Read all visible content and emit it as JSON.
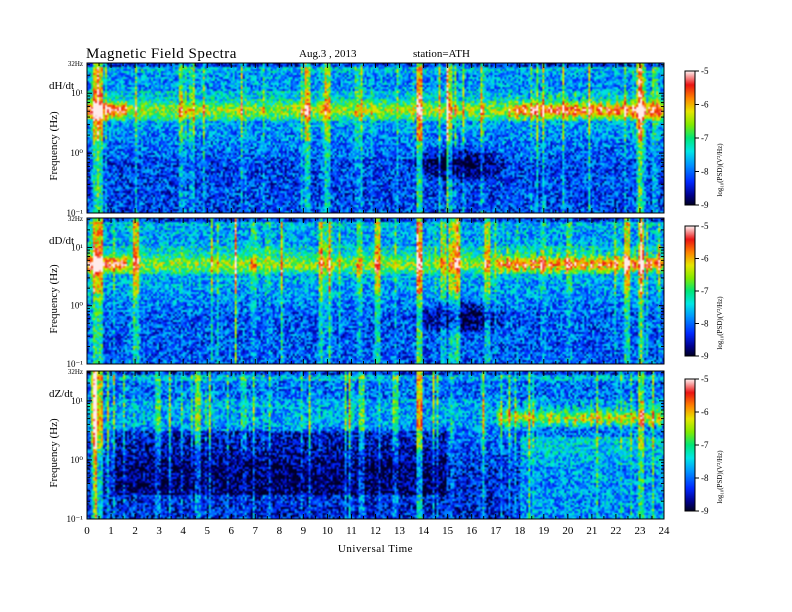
{
  "header": {
    "title": "Magnetic  Field  Spectra",
    "date": "Aug.3  , 2013",
    "station": "station=ATH"
  },
  "chart_data": [
    {
      "type": "heatmap",
      "panel_label": "dH/dt",
      "ylabel": "Frequency  (Hz)",
      "y_scale": "log",
      "ylim": [
        0.1,
        32
      ],
      "y_tick_labels": [
        "32Hz",
        "10¹",
        "10⁰",
        "10⁻¹"
      ],
      "xlim": [
        0,
        24
      ],
      "colorbar": {
        "label": "log₁₀(PSD)(V²/Hz)",
        "ticks": [
          "-5",
          "-6",
          "-7",
          "-8",
          "-9"
        ],
        "range": [
          -9,
          -5
        ]
      },
      "features": [
        {
          "name": "low_freq_floor",
          "value": -8.4
        },
        {
          "name": "band_4_8Hz",
          "value": -6.5,
          "strong_after_hour": 17.5,
          "strong_value": -5.6
        }
      ]
    },
    {
      "type": "heatmap",
      "panel_label": "dD/dt",
      "ylabel": "Frequency  (Hz)",
      "y_scale": "log",
      "ylim": [
        0.1,
        32
      ],
      "y_tick_labels": [
        "32Hz",
        "10¹",
        "10⁰",
        "10⁻¹"
      ],
      "xlim": [
        0,
        24
      ],
      "colorbar": {
        "label": "log₁₀(PSD)(V²/Hz)",
        "ticks": [
          "-5",
          "-6",
          "-7",
          "-8",
          "-9"
        ],
        "range": [
          -9,
          -5
        ]
      },
      "features": [
        {
          "name": "low_freq_floor",
          "value": -8.3
        },
        {
          "name": "band_4_8Hz",
          "value": -6.6,
          "strong_after_hour": 17.0,
          "strong_value": -5.7
        }
      ]
    },
    {
      "type": "heatmap",
      "panel_label": "dZ/dt",
      "ylabel": "Frequency  (Hz)",
      "y_scale": "log",
      "ylim": [
        0.1,
        32
      ],
      "y_tick_labels": [
        "32Hz",
        "10¹",
        "10⁰",
        "10⁻¹"
      ],
      "xlim": [
        0,
        24
      ],
      "xlabel": "Universal Time",
      "x_tick_labels": [
        "0",
        "1",
        "2",
        "3",
        "4",
        "5",
        "6",
        "7",
        "8",
        "9",
        "10",
        "11",
        "12",
        "13",
        "14",
        "15",
        "16",
        "17",
        "18",
        "19",
        "20",
        "21",
        "22",
        "23",
        "24"
      ],
      "colorbar": {
        "label": "log₁₀(PSD)(V²/Hz)",
        "ticks": [
          "-5",
          "-6",
          "-7",
          "-8",
          "-9"
        ],
        "range": [
          -9,
          -5
        ]
      },
      "features": [
        {
          "name": "low_freq_floor",
          "value": -8.6
        },
        {
          "name": "band_4_8Hz",
          "value": -7.7,
          "strong_after_hour": 17.0,
          "strong_value": -6.5
        }
      ]
    }
  ]
}
